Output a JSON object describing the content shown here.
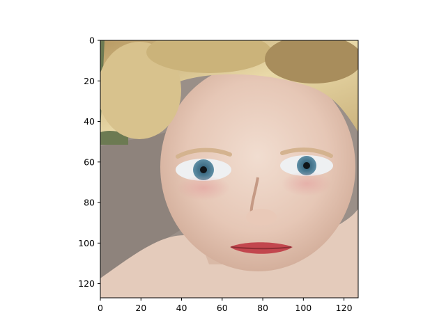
{
  "figure": {
    "image_subject": "close-up portrait of a blond child"
  },
  "chart_data": {
    "type": "image",
    "xlim": [
      0,
      127
    ],
    "ylim": [
      127,
      0
    ],
    "x_ticks": [
      0,
      20,
      40,
      60,
      80,
      100,
      120
    ],
    "y_ticks": [
      0,
      20,
      40,
      60,
      80,
      100,
      120
    ],
    "x_tick_labels": [
      "0",
      "20",
      "40",
      "60",
      "80",
      "100",
      "120"
    ],
    "y_tick_labels": [
      "0",
      "20",
      "40",
      "60",
      "80",
      "100",
      "120"
    ],
    "grid": false,
    "legend": "none"
  }
}
